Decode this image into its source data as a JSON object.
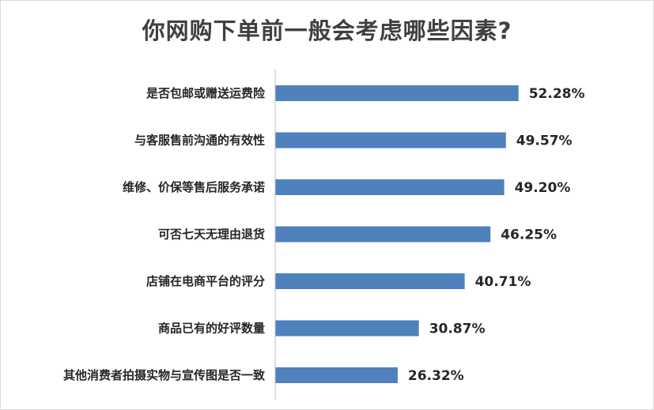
{
  "chart_data": {
    "type": "bar",
    "orientation": "horizontal",
    "title": "你网购下单前一般会考虑哪些因素?",
    "categories": [
      "是否包邮或赠送运费险",
      "与客服售前沟通的有效性",
      "维修、价保等售后服务承诺",
      "可否七天无理由退货",
      "店铺在电商平台的评分",
      "商品已有的好评数量",
      "其他消费者拍摄实物与宣传图是否一致"
    ],
    "values": [
      52.28,
      49.57,
      49.2,
      46.25,
      40.71,
      30.87,
      26.32
    ],
    "value_labels": [
      "52.28%",
      "49.57%",
      "49.20%",
      "46.25%",
      "40.71%",
      "30.87%",
      "26.32%"
    ],
    "xlim": [
      0,
      70
    ],
    "unit": "%",
    "bar_color": "#4f81bd",
    "grid": false,
    "legend": "none"
  }
}
